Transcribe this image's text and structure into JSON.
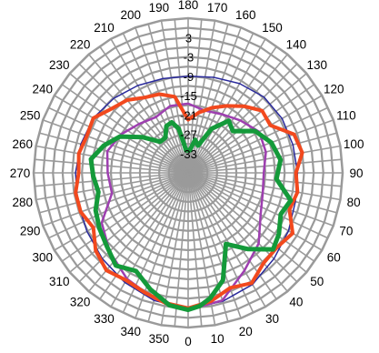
{
  "chart_data": {
    "type": "polar",
    "title": "",
    "radial_axis": {
      "min": -39,
      "max": 9,
      "gridline_step": 3,
      "ticks": [
        3,
        -3,
        -9,
        -15,
        -21,
        -27,
        -33
      ],
      "labels": [
        "3",
        "-3",
        "-9",
        "-15",
        "-21",
        "-27",
        "-33"
      ]
    },
    "angular_axis": {
      "zero_at": "bottom",
      "direction": "counterclockwise",
      "spoke_step_deg": 5,
      "label_step_deg": 10,
      "ticks": [
        0,
        10,
        20,
        30,
        40,
        50,
        60,
        70,
        80,
        90,
        100,
        110,
        120,
        130,
        140,
        150,
        160,
        170,
        180,
        190,
        200,
        210,
        220,
        230,
        240,
        250,
        260,
        270,
        280,
        290,
        300,
        310,
        320,
        330,
        340,
        350
      ],
      "labels": [
        "0",
        "10",
        "20",
        "30",
        "40",
        "50",
        "60",
        "70",
        "80",
        "90",
        "100",
        "110",
        "120",
        "130",
        "140",
        "150",
        "160",
        "170",
        "180",
        "190",
        "200",
        "210",
        "220",
        "230",
        "240",
        "250",
        "260",
        "270",
        "280",
        "290",
        "300",
        "310",
        "320",
        "330",
        "340",
        "350"
      ]
    },
    "grid": true,
    "legend": "none",
    "series": [
      {
        "color": "#2a2a9c",
        "width": 1.5,
        "points": [
          [
            0,
            3.0
          ],
          [
            15,
            2.3
          ],
          [
            30,
            1.0
          ],
          [
            45,
            -1.3
          ],
          [
            60,
            -3.0
          ],
          [
            75,
            -4.5
          ],
          [
            90,
            -5.0
          ],
          [
            105,
            -5.3
          ],
          [
            120,
            -5.3
          ],
          [
            135,
            -5.7
          ],
          [
            150,
            -7.0
          ],
          [
            165,
            -8.3
          ],
          [
            180,
            -9.0
          ],
          [
            195,
            -8.7
          ],
          [
            210,
            -7.7
          ],
          [
            225,
            -6.3
          ],
          [
            240,
            -5.0
          ],
          [
            255,
            -4.5
          ],
          [
            270,
            -4.0
          ],
          [
            285,
            -3.5
          ],
          [
            300,
            -2.7
          ],
          [
            315,
            -1.3
          ],
          [
            330,
            0.3
          ],
          [
            345,
            2.0
          ]
        ]
      },
      {
        "color": "#9e3fb0",
        "width": 2.5,
        "points": [
          [
            0,
            3.5
          ],
          [
            15,
            2.0
          ],
          [
            30,
            -4.0
          ],
          [
            45,
            -8.0
          ],
          [
            60,
            -13.0
          ],
          [
            75,
            -15.0
          ],
          [
            90,
            -15.5
          ],
          [
            105,
            -14.0
          ],
          [
            120,
            -13.5
          ],
          [
            135,
            -16.0
          ],
          [
            150,
            -18.0
          ],
          [
            165,
            -19.0
          ],
          [
            180,
            -17.5
          ],
          [
            195,
            -17.5
          ],
          [
            210,
            -19.0
          ],
          [
            225,
            -17.5
          ],
          [
            240,
            -15.0
          ],
          [
            255,
            -13.0
          ],
          [
            270,
            -14.0
          ],
          [
            285,
            -14.5
          ],
          [
            300,
            -8.0
          ],
          [
            315,
            -4.5
          ],
          [
            330,
            -1.0
          ],
          [
            345,
            1.5
          ]
        ]
      },
      {
        "color": "#f2491e",
        "width": 4,
        "points": [
          [
            0,
            3.0
          ],
          [
            10,
            1.5
          ],
          [
            20,
            -1.0
          ],
          [
            30,
            0.5
          ],
          [
            40,
            -2.5
          ],
          [
            50,
            -3.0
          ],
          [
            60,
            -1.5
          ],
          [
            70,
            -5.5
          ],
          [
            80,
            -4.5
          ],
          [
            90,
            -5.5
          ],
          [
            100,
            -3.0
          ],
          [
            110,
            -4.0
          ],
          [
            120,
            -9.5
          ],
          [
            130,
            -9.0
          ],
          [
            140,
            -12.0
          ],
          [
            150,
            -15.0
          ],
          [
            160,
            -17.5
          ],
          [
            170,
            -20.0
          ],
          [
            180,
            -22.5
          ],
          [
            190,
            -15.0
          ],
          [
            200,
            -13.0
          ],
          [
            210,
            -12.0
          ],
          [
            220,
            -9.5
          ],
          [
            230,
            -8.0
          ],
          [
            240,
            -5.0
          ],
          [
            250,
            -5.5
          ],
          [
            260,
            -4.5
          ],
          [
            270,
            -5.0
          ],
          [
            280,
            -3.5
          ],
          [
            290,
            -3.5
          ],
          [
            300,
            -5.0
          ],
          [
            310,
            -1.5
          ],
          [
            320,
            0.5
          ],
          [
            330,
            -0.5
          ],
          [
            340,
            0.5
          ],
          [
            350,
            2.0
          ]
        ]
      },
      {
        "color": "#149a3a",
        "width": 5,
        "points": [
          [
            0,
            3.5
          ],
          [
            5,
            2.5
          ],
          [
            10,
            0.5
          ],
          [
            18,
            -4.0
          ],
          [
            28,
            -14.0
          ],
          [
            38,
            -9.0
          ],
          [
            48,
            -3.5
          ],
          [
            56,
            -5.0
          ],
          [
            66,
            -7.5
          ],
          [
            75,
            -6.0
          ],
          [
            86,
            -11.5
          ],
          [
            98,
            -10.0
          ],
          [
            110,
            -11.5
          ],
          [
            122,
            -14.5
          ],
          [
            133,
            -20.0
          ],
          [
            142,
            -18.5
          ],
          [
            152,
            -23.5
          ],
          [
            160,
            -30.0
          ],
          [
            168,
            -28.5
          ],
          [
            176,
            -32.0
          ],
          [
            185,
            -32.0
          ],
          [
            192,
            -25.0
          ],
          [
            198,
            -22.5
          ],
          [
            205,
            -23.0
          ],
          [
            213,
            -26.0
          ],
          [
            222,
            -26.0
          ],
          [
            232,
            -21.0
          ],
          [
            242,
            -15.0
          ],
          [
            252,
            -11.5
          ],
          [
            262,
            -8.5
          ],
          [
            272,
            -9.5
          ],
          [
            282,
            -10.5
          ],
          [
            292,
            -8.0
          ],
          [
            302,
            -6.5
          ],
          [
            312,
            -5.0
          ],
          [
            322,
            -2.5
          ],
          [
            332,
            -4.5
          ],
          [
            342,
            -1.0
          ],
          [
            352,
            2.5
          ]
        ]
      }
    ]
  }
}
